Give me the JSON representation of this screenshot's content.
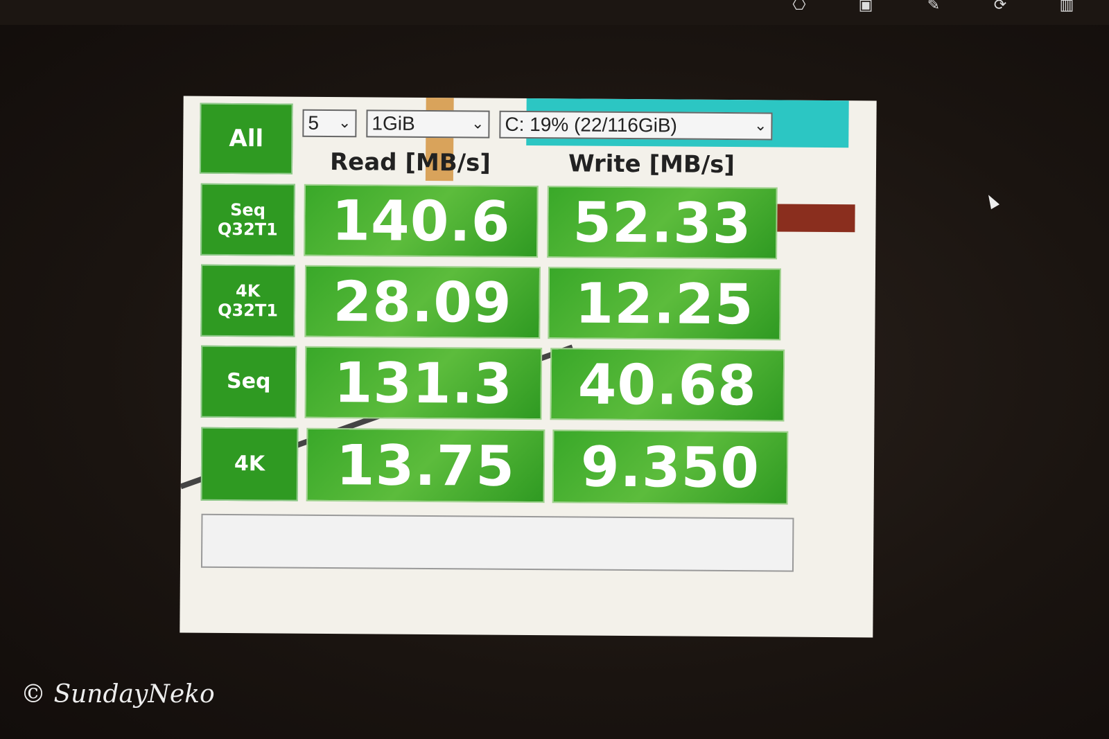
{
  "toolbar": {
    "icons": [
      "share-icon",
      "slideshow-icon",
      "edit-icon",
      "rotate-icon",
      "delete-icon"
    ]
  },
  "app": {
    "all_button": "All",
    "count_select": "5",
    "size_select": "1GiB",
    "drive_select": "C: 19% (22/116GiB)",
    "read_header": "Read [MB/s]",
    "write_header": "Write [MB/s]",
    "rows": [
      {
        "label": "Seq\nQ32T1",
        "read": "140.6",
        "write": "52.33"
      },
      {
        "label": "4K\nQ32T1",
        "read": "28.09",
        "write": "12.25"
      },
      {
        "label": "Seq",
        "read": "131.3",
        "write": "40.68"
      },
      {
        "label": "4K",
        "read": "13.75",
        "write": "9.350"
      }
    ],
    "accent": "#2f9a22"
  },
  "watermark": "© SundayNeko"
}
